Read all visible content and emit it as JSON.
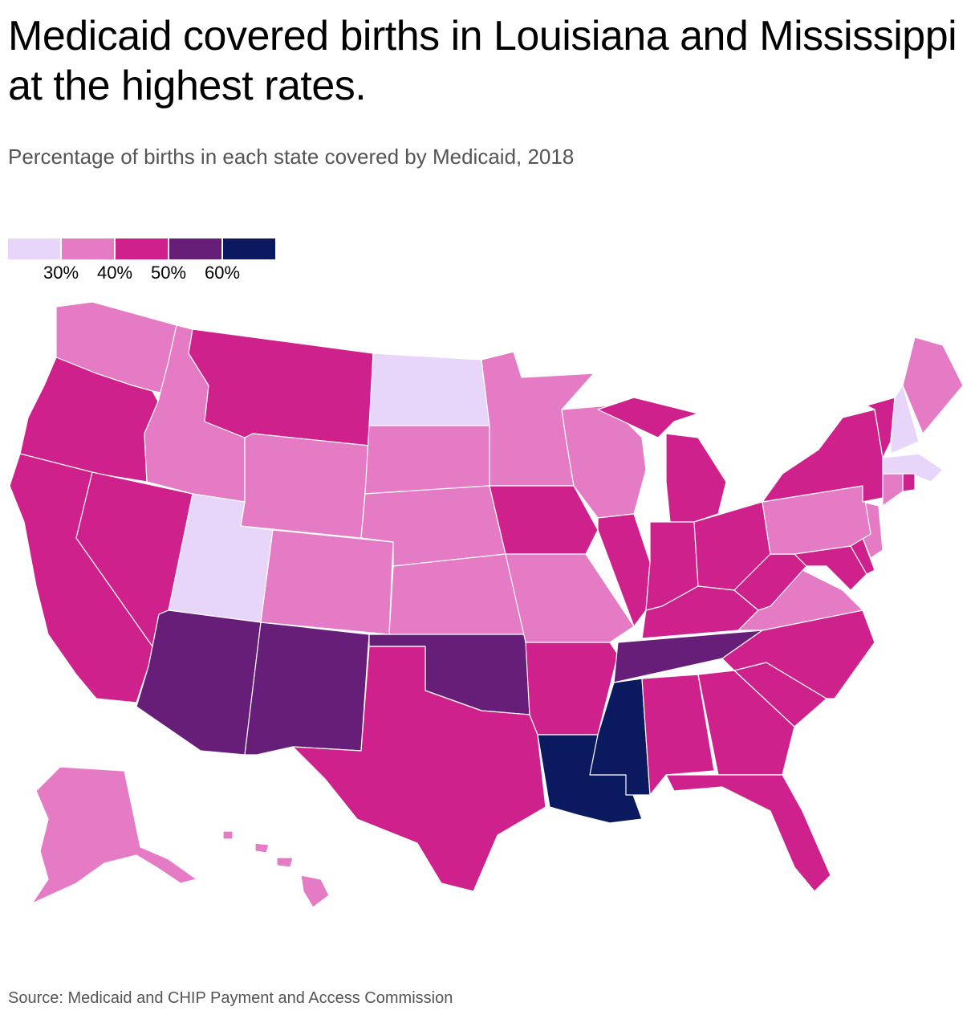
{
  "title": "Medicaid covered births in Louisiana and Mississippi at the highest rates.",
  "subtitle": "Percentage of births in each state covered by Medicaid, 2018",
  "source": "Source: Medicaid and CHIP Payment and Access Commission",
  "legend": {
    "colors": [
      "#e8d5fa",
      "#e57ac5",
      "#cf218b",
      "#671e78",
      "#0b1a5f"
    ],
    "labels": [
      "30%",
      "40%",
      "50%",
      "60%"
    ]
  },
  "map_data": {
    "bin_colors": [
      "#e8d5fa",
      "#e57ac5",
      "#cf218b",
      "#671e78",
      "#0b1a5f"
    ],
    "states": {
      "WA": 1,
      "OR": 2,
      "CA": 2,
      "NV": 2,
      "ID": 1,
      "MT": 2,
      "WY": 1,
      "UT": 0,
      "AZ": 3,
      "NM": 3,
      "CO": 1,
      "ND": 0,
      "SD": 1,
      "NE": 1,
      "KS": 1,
      "OK": 3,
      "TX": 2,
      "MN": 1,
      "IA": 2,
      "MO": 1,
      "AR": 2,
      "LA": 4,
      "WI": 1,
      "IL": 2,
      "MI": 2,
      "IN": 2,
      "OH": 2,
      "KY": 2,
      "TN": 3,
      "MS": 4,
      "AL": 2,
      "GA": 2,
      "FL": 2,
      "SC": 2,
      "NC": 2,
      "VA": 1,
      "WV": 2,
      "MD": 2,
      "DE": 2,
      "NJ": 1,
      "PA": 1,
      "NY": 2,
      "VT": 2,
      "NH": 0,
      "ME": 1,
      "MA": 0,
      "RI": 2,
      "CT": 1,
      "AK": 1,
      "HI": 1
    }
  }
}
